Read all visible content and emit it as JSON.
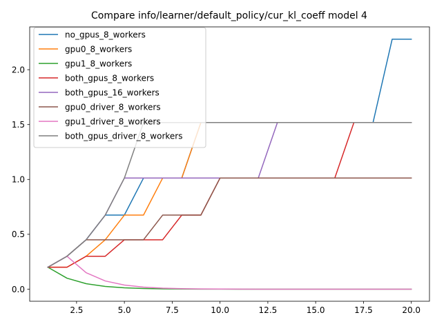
{
  "chart_data": {
    "type": "line",
    "title": "Compare info/learner/default_policy/cur_kl_coeff model 4",
    "xlabel": "",
    "ylabel": "",
    "xlim": [
      0.05,
      20.95
    ],
    "ylim": [
      -0.11,
      2.39
    ],
    "xticks": [
      2.5,
      5.0,
      7.5,
      10.0,
      12.5,
      15.0,
      17.5,
      20.0
    ],
    "xtick_labels": [
      "2.5",
      "5.0",
      "7.5",
      "10.0",
      "12.5",
      "15.0",
      "17.5",
      "20.0"
    ],
    "yticks": [
      0.0,
      0.5,
      1.0,
      1.5,
      2.0
    ],
    "ytick_labels": [
      "0.0",
      "0.5",
      "1.0",
      "1.5",
      "2.0"
    ],
    "legend_position": "top-left",
    "grid": false,
    "x": [
      1,
      2,
      3,
      4,
      5,
      6,
      7,
      8,
      9,
      10,
      11,
      12,
      13,
      14,
      15,
      16,
      17,
      18,
      19,
      20
    ],
    "series": [
      {
        "name": "no_gpus_8_workers",
        "color": "#1f77b4",
        "values": [
          0.2,
          0.3,
          0.45,
          0.675,
          0.675,
          1.0125,
          1.0125,
          1.0125,
          1.51875,
          1.51875,
          1.51875,
          1.51875,
          1.51875,
          1.51875,
          1.51875,
          1.51875,
          1.51875,
          1.51875,
          2.278,
          2.278
        ]
      },
      {
        "name": "gpu0_8_workers",
        "color": "#ff7f0e",
        "values": [
          0.2,
          0.2,
          0.3,
          0.45,
          0.675,
          0.675,
          1.0125,
          1.0125,
          1.51875,
          1.51875,
          1.51875,
          1.51875,
          1.51875,
          1.51875,
          1.51875,
          1.51875,
          1.51875,
          1.51875,
          1.51875,
          1.51875
        ]
      },
      {
        "name": "gpu1_8_workers",
        "color": "#2ca02c",
        "values": [
          0.2,
          0.1,
          0.05,
          0.025,
          0.0125,
          0.00625,
          0.003,
          0.0015,
          0.0008,
          0.0004,
          0.0002,
          0.0001,
          0.0,
          0.0,
          0.0,
          0.0,
          0.0,
          0.0,
          0.0,
          0.0
        ]
      },
      {
        "name": "both_gpus_8_workers",
        "color": "#d62728",
        "values": [
          0.2,
          0.2,
          0.3,
          0.3,
          0.45,
          0.45,
          0.45,
          0.675,
          0.675,
          1.0125,
          1.0125,
          1.0125,
          1.0125,
          1.0125,
          1.0125,
          1.0125,
          1.51875,
          1.51875,
          1.51875,
          1.51875
        ]
      },
      {
        "name": "both_gpus_16_workers",
        "color": "#9467bd",
        "values": [
          0.2,
          0.3,
          0.45,
          0.675,
          1.0125,
          1.0125,
          1.0125,
          1.0125,
          1.0125,
          1.0125,
          1.0125,
          1.0125,
          1.51875,
          1.51875,
          1.51875,
          1.51875,
          1.51875,
          1.51875,
          1.51875,
          1.51875
        ]
      },
      {
        "name": "gpu0_driver_8_workers",
        "color": "#8c564b",
        "values": [
          0.2,
          0.3,
          0.45,
          0.45,
          0.45,
          0.45,
          0.675,
          0.675,
          0.675,
          1.0125,
          1.0125,
          1.0125,
          1.0125,
          1.0125,
          1.0125,
          1.0125,
          1.0125,
          1.0125,
          1.0125,
          1.0125
        ]
      },
      {
        "name": "gpu1_driver_8_workers",
        "color": "#e377c2",
        "values": [
          0.2,
          0.3,
          0.15,
          0.075,
          0.0375,
          0.01875,
          0.009,
          0.0045,
          0.0023,
          0.0012,
          0.0006,
          0.0003,
          0.0001,
          0.0,
          0.0,
          0.0,
          0.0,
          0.0,
          0.0,
          0.0
        ]
      },
      {
        "name": "both_gpus_driver_8_workers",
        "color": "#7f7f7f",
        "values": [
          0.2,
          0.3,
          0.45,
          0.675,
          1.0125,
          1.51875,
          1.51875,
          1.51875,
          1.51875,
          1.51875,
          1.51875,
          1.51875,
          1.51875,
          1.51875,
          1.51875,
          1.51875,
          1.51875,
          1.51875,
          1.51875,
          1.51875
        ]
      }
    ]
  }
}
